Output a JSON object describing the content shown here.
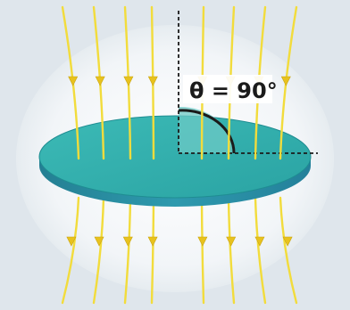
{
  "angle_label": "θ = 90°",
  "colors": {
    "background": "#dfe6ec",
    "halo": "#f4f7f9",
    "field_line": "#f2dc3c",
    "arrow": "#e8c21e",
    "disc_top": "#2fb0ad",
    "disc_edge": "#2a8fa2",
    "angle_fill": "#6cc9c6",
    "guide_line": "#1b1b1b",
    "label_background": "#ffffff"
  },
  "field_line_count": 8,
  "direction": "downward"
}
